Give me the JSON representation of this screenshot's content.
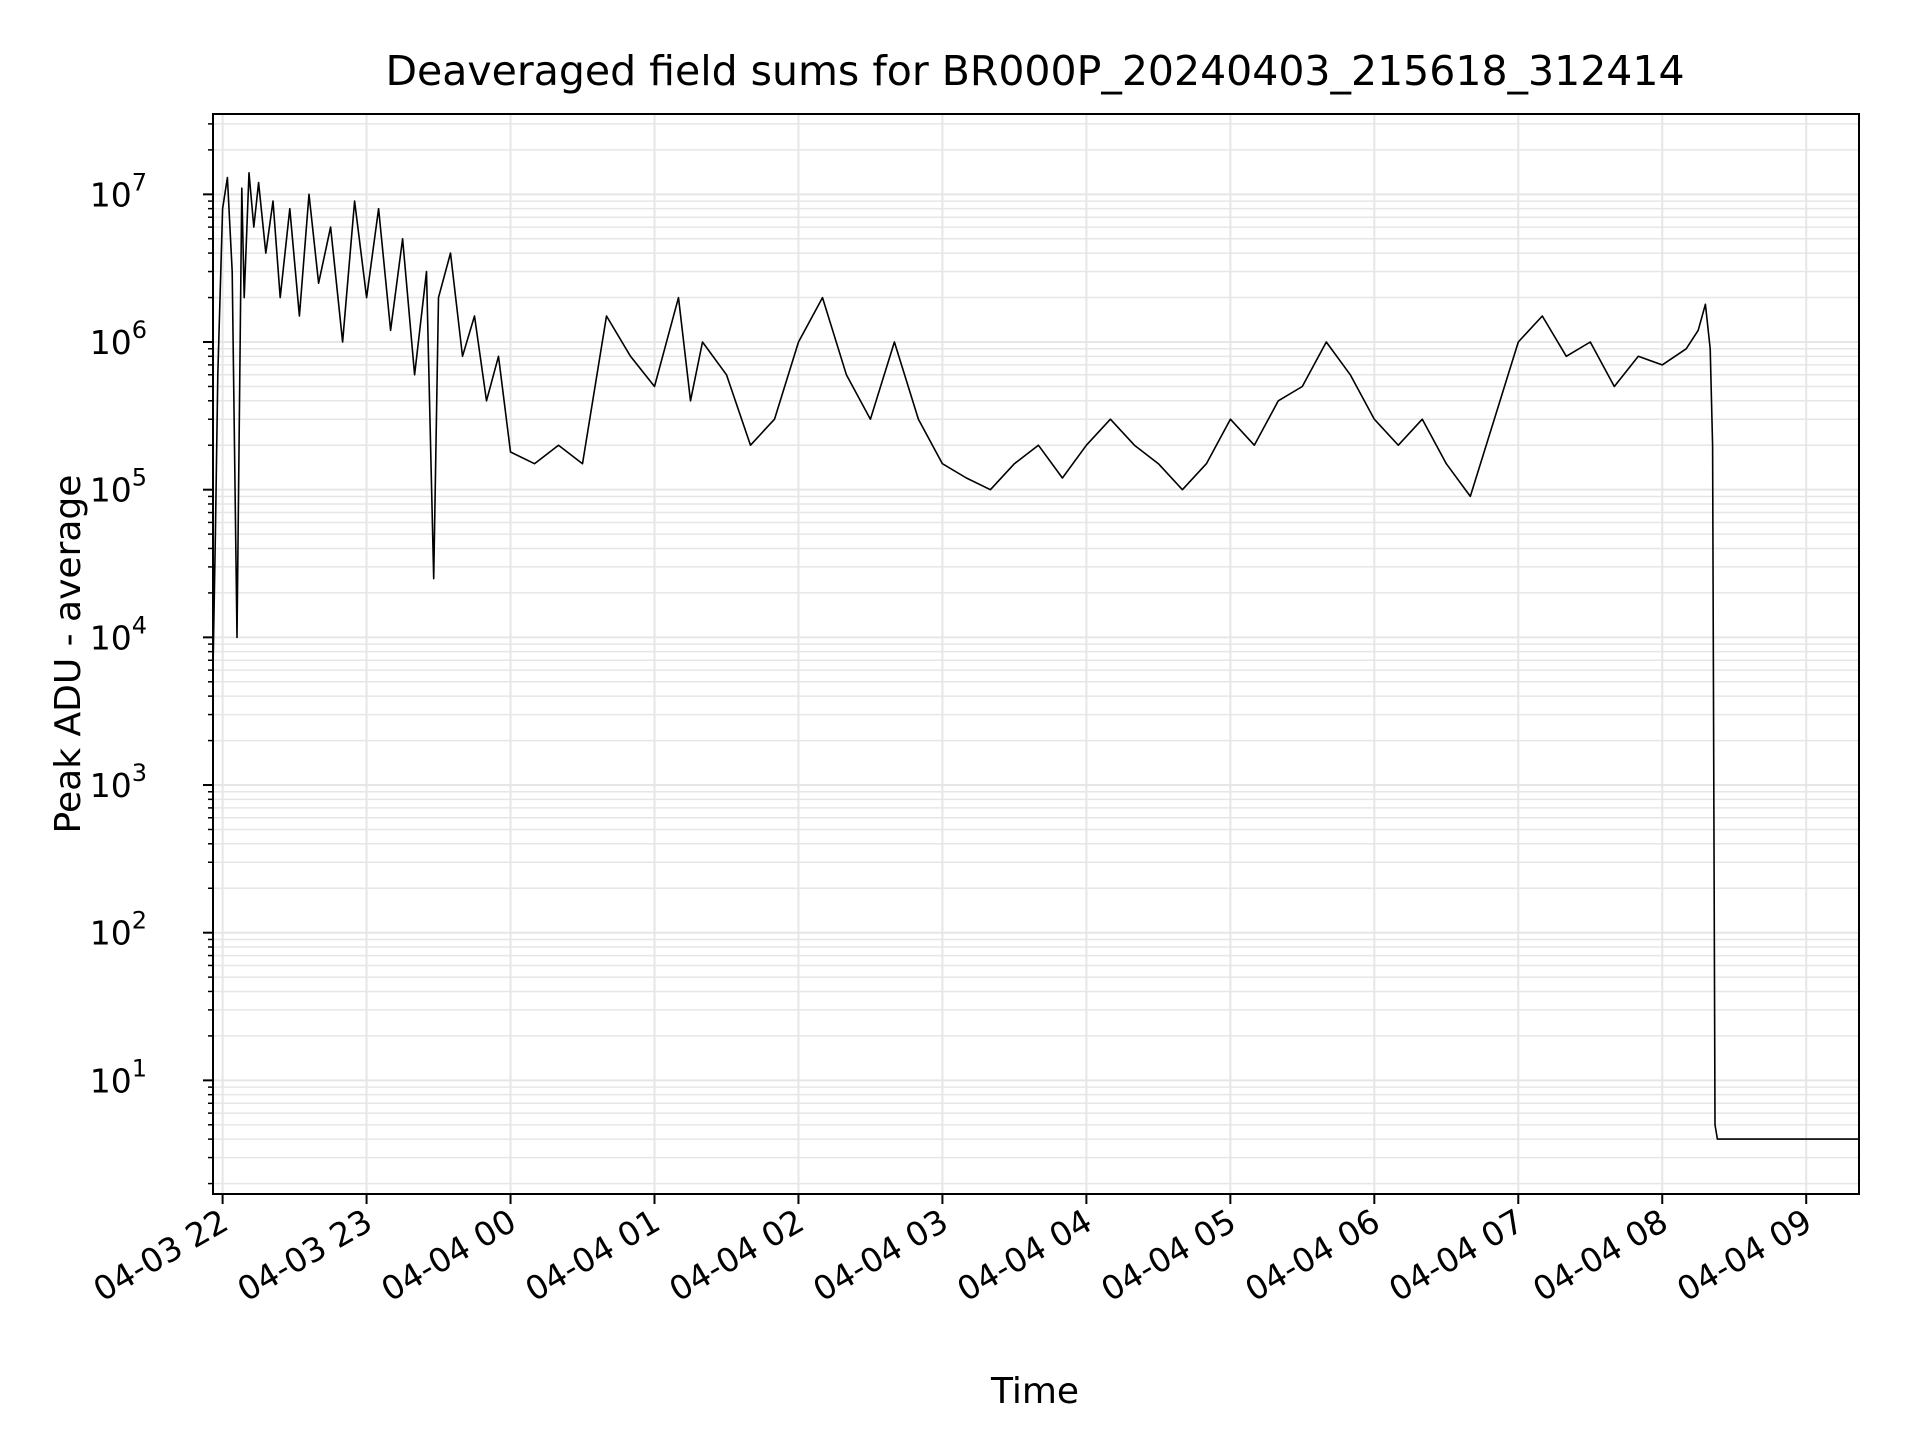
{
  "chart_data": {
    "type": "line",
    "title": "Deaveraged field sums for BR000P_20240403_215618_312414",
    "xlabel": "Time",
    "ylabel": "Peak ADU - average",
    "yscale": "log",
    "ylim": [
      1.7,
      35000000
    ],
    "xlim": [
      "2024-04-03 21:56",
      "2024-04-04 09:22"
    ],
    "grid": true,
    "x_tick_labels": [
      "04-03 22",
      "04-03 23",
      "04-04 00",
      "04-04 01",
      "04-04 02",
      "04-04 03",
      "04-04 04",
      "04-04 05",
      "04-04 06",
      "04-04 07",
      "04-04 08",
      "04-04 09"
    ],
    "x_ticks": [
      "2024-04-03 22:00",
      "2024-04-03 23:00",
      "2024-04-04 00:00",
      "2024-04-04 01:00",
      "2024-04-04 02:00",
      "2024-04-04 03:00",
      "2024-04-04 04:00",
      "2024-04-04 05:00",
      "2024-04-04 06:00",
      "2024-04-04 07:00",
      "2024-04-04 08:00",
      "2024-04-04 09:00"
    ],
    "y_ticks": [
      {
        "base": "10",
        "exp": "1",
        "value": 10
      },
      {
        "base": "10",
        "exp": "2",
        "value": 100
      },
      {
        "base": "10",
        "exp": "3",
        "value": 1000
      },
      {
        "base": "10",
        "exp": "4",
        "value": 10000
      },
      {
        "base": "10",
        "exp": "5",
        "value": 100000
      },
      {
        "base": "10",
        "exp": "6",
        "value": 1000000
      },
      {
        "base": "10",
        "exp": "7",
        "value": 10000000
      }
    ],
    "line_color": "#000000",
    "series": [
      {
        "x": [
          "2024-04-03 21:56",
          "2024-04-03 21:57",
          "2024-04-03 21:58",
          "2024-04-03 22:00",
          "2024-04-03 22:02",
          "2024-04-03 22:04",
          "2024-04-03 22:06",
          "2024-04-03 22:08",
          "2024-04-03 22:09",
          "2024-04-03 22:11",
          "2024-04-03 22:13",
          "2024-04-03 22:15",
          "2024-04-03 22:18",
          "2024-04-03 22:21",
          "2024-04-03 22:24",
          "2024-04-03 22:28",
          "2024-04-03 22:32",
          "2024-04-03 22:36",
          "2024-04-03 22:40",
          "2024-04-03 22:45",
          "2024-04-03 22:50",
          "2024-04-03 22:55",
          "2024-04-03 23:00",
          "2024-04-03 23:05",
          "2024-04-03 23:10",
          "2024-04-03 23:15",
          "2024-04-03 23:20",
          "2024-04-03 23:25",
          "2024-04-03 23:28",
          "2024-04-03 23:30",
          "2024-04-03 23:35",
          "2024-04-03 23:40",
          "2024-04-03 23:45",
          "2024-04-03 23:50",
          "2024-04-03 23:55",
          "2024-04-04 00:00",
          "2024-04-04 00:10",
          "2024-04-04 00:20",
          "2024-04-04 00:30",
          "2024-04-04 00:40",
          "2024-04-04 00:50",
          "2024-04-04 01:00",
          "2024-04-04 01:10",
          "2024-04-04 01:15",
          "2024-04-04 01:20",
          "2024-04-04 01:30",
          "2024-04-04 01:40",
          "2024-04-04 01:50",
          "2024-04-04 02:00",
          "2024-04-04 02:10",
          "2024-04-04 02:20",
          "2024-04-04 02:30",
          "2024-04-04 02:40",
          "2024-04-04 02:50",
          "2024-04-04 03:00",
          "2024-04-04 03:10",
          "2024-04-04 03:20",
          "2024-04-04 03:30",
          "2024-04-04 03:40",
          "2024-04-04 03:50",
          "2024-04-04 04:00",
          "2024-04-04 04:10",
          "2024-04-04 04:20",
          "2024-04-04 04:30",
          "2024-04-04 04:40",
          "2024-04-04 04:50",
          "2024-04-04 05:00",
          "2024-04-04 05:10",
          "2024-04-04 05:20",
          "2024-04-04 05:30",
          "2024-04-04 05:40",
          "2024-04-04 05:50",
          "2024-04-04 06:00",
          "2024-04-04 06:10",
          "2024-04-04 06:20",
          "2024-04-04 06:30",
          "2024-04-04 06:40",
          "2024-04-04 06:50",
          "2024-04-04 07:00",
          "2024-04-04 07:10",
          "2024-04-04 07:20",
          "2024-04-04 07:30",
          "2024-04-04 07:40",
          "2024-04-04 07:50",
          "2024-04-04 08:00",
          "2024-04-04 08:10",
          "2024-04-04 08:15",
          "2024-04-04 08:18",
          "2024-04-04 08:20",
          "2024-04-04 08:21",
          "2024-04-04 08:22",
          "2024-04-04 08:23",
          "2024-04-04 08:30",
          "2024-04-04 08:45",
          "2024-04-04 09:00",
          "2024-04-04 09:15",
          "2024-04-04 09:22"
        ],
        "y": [
          6000,
          50000,
          600000,
          8000000,
          13000000,
          3000000,
          10000,
          11000000,
          2000000,
          14000000,
          6000000,
          12000000,
          4000000,
          9000000,
          2000000,
          8000000,
          1500000,
          10000000,
          2500000,
          6000000,
          1000000,
          9000000,
          2000000,
          8000000,
          1200000,
          5000000,
          600000,
          3000000,
          25000,
          2000000,
          4000000,
          800000,
          1500000,
          400000,
          800000,
          180000,
          150000,
          200000,
          150000,
          1500000,
          800000,
          500000,
          2000000,
          400000,
          1000000,
          600000,
          200000,
          300000,
          1000000,
          2000000,
          600000,
          300000,
          1000000,
          300000,
          150000,
          120000,
          100000,
          150000,
          200000,
          120000,
          200000,
          300000,
          200000,
          150000,
          100000,
          150000,
          300000,
          200000,
          400000,
          500000,
          1000000,
          600000,
          300000,
          200000,
          300000,
          150000,
          90000,
          300000,
          1000000,
          1500000,
          800000,
          1000000,
          500000,
          800000,
          700000,
          900000,
          1200000,
          1800000,
          900000,
          200000,
          5,
          4,
          4,
          4,
          4,
          4,
          4
        ]
      }
    ]
  }
}
